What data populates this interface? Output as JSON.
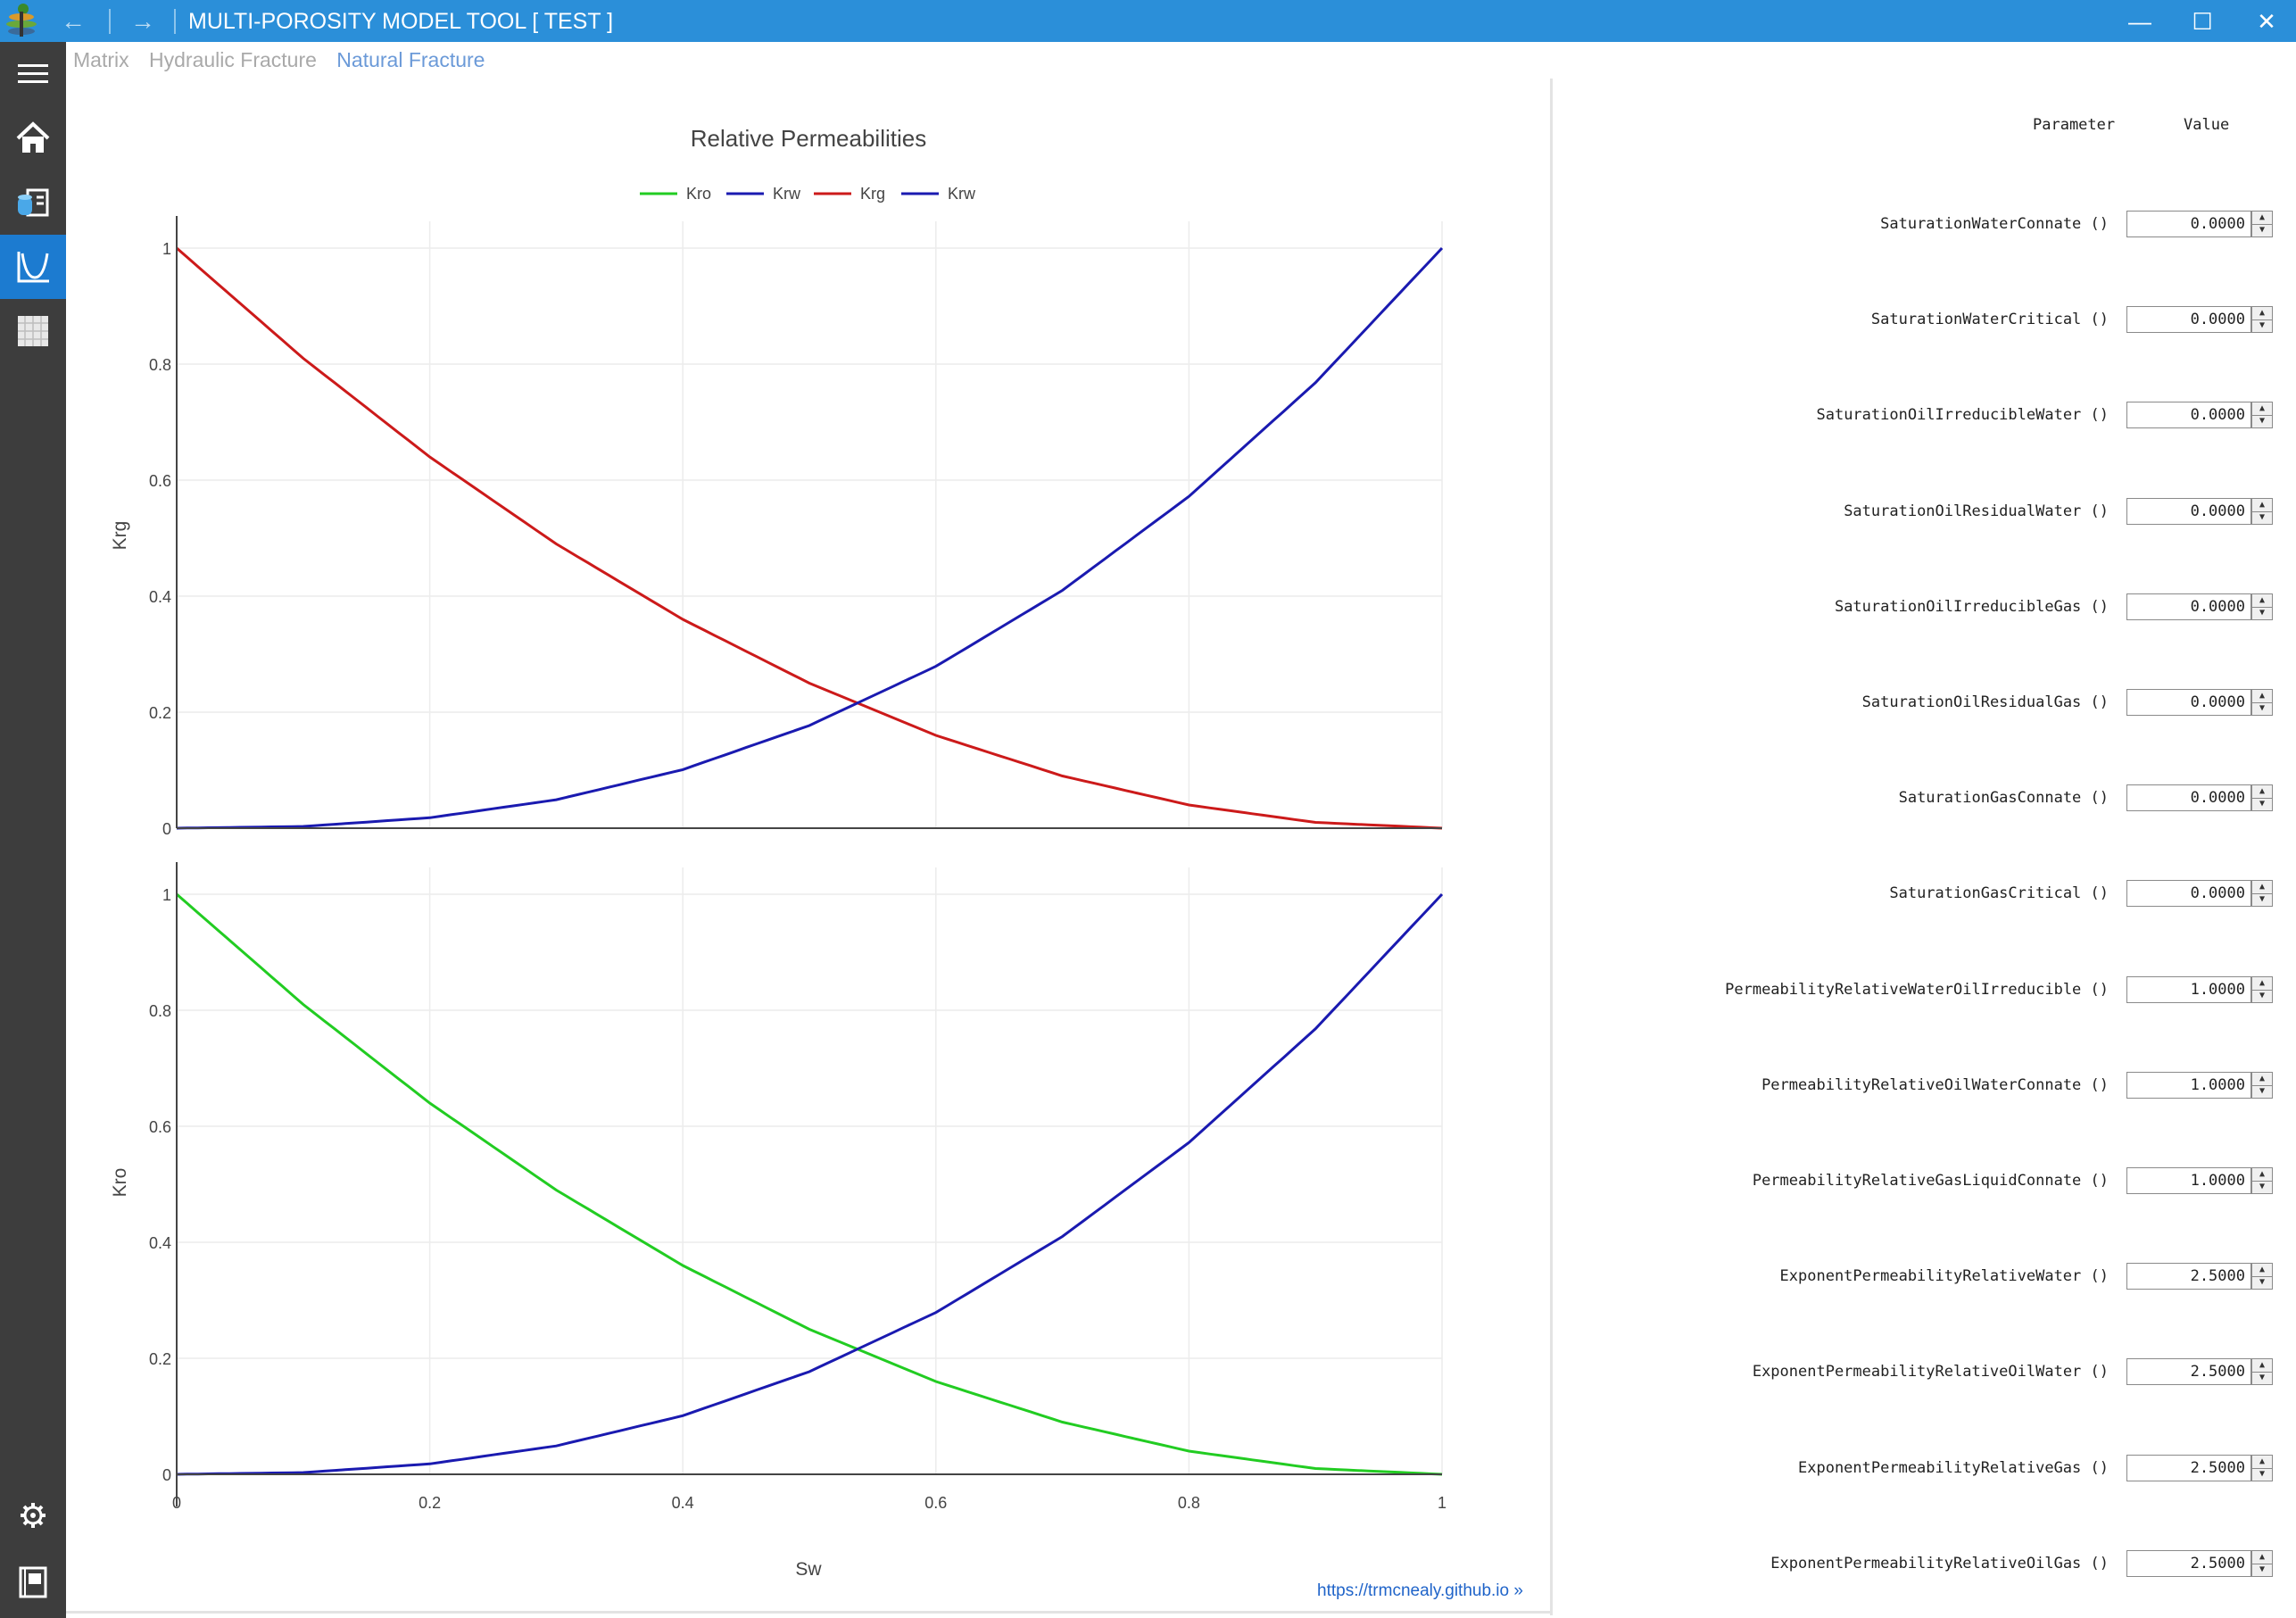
{
  "window": {
    "title": "MULTI-POROSITY MODEL TOOL [ TEST ]",
    "back_glyph": "←",
    "forward_glyph": "→",
    "minimize_glyph": "—",
    "maximize_glyph": "☐",
    "close_glyph": "✕"
  },
  "sidebar": {
    "items": [
      {
        "name": "menu-icon"
      },
      {
        "name": "home-icon"
      },
      {
        "name": "database-icon"
      },
      {
        "name": "chart-curve-icon",
        "active": true
      },
      {
        "name": "grid-icon"
      },
      {
        "name": "gear-icon"
      },
      {
        "name": "notebook-icon"
      }
    ]
  },
  "tabs": [
    {
      "label": "Matrix",
      "active": false
    },
    {
      "label": "Hydraulic Fracture",
      "active": false
    },
    {
      "label": "Natural Fracture",
      "active": true
    }
  ],
  "chart_data": {
    "type": "line",
    "title": "Relative Permeabilities",
    "xlabel": "Sw",
    "xlim": [
      0,
      1
    ],
    "xticks": [
      "0",
      "0.2",
      "0.4",
      "0.6",
      "0.8",
      "1"
    ],
    "legend_position": "top-center",
    "legend": [
      {
        "name": "Kro",
        "color": "#22cc22"
      },
      {
        "name": "Krw",
        "color": "#1a1ab0"
      },
      {
        "name": "Krg",
        "color": "#cc1a1a"
      },
      {
        "name": "Krw",
        "color": "#1a1ab0"
      }
    ],
    "grid": true,
    "subplots": [
      {
        "ylabel": "Krg",
        "ylim": [
          0,
          1
        ],
        "yticks": [
          "0",
          "0.2",
          "0.4",
          "0.6",
          "0.8",
          "1"
        ],
        "series": [
          {
            "name": "Krg",
            "color": "#cc1a1a",
            "x": [
              0,
              0.1,
              0.2,
              0.3,
              0.4,
              0.5,
              0.6,
              0.7,
              0.8,
              0.9,
              1.0
            ],
            "y": [
              1.0,
              0.81,
              0.64,
              0.49,
              0.36,
              0.25,
              0.16,
              0.09,
              0.04,
              0.01,
              0.0
            ]
          },
          {
            "name": "Krw",
            "color": "#1a1ab0",
            "x": [
              0,
              0.1,
              0.2,
              0.3,
              0.4,
              0.5,
              0.6,
              0.7,
              0.8,
              0.9,
              1.0
            ],
            "y": [
              0.0,
              0.003,
              0.018,
              0.049,
              0.101,
              0.177,
              0.279,
              0.41,
              0.572,
              0.768,
              1.0
            ]
          }
        ]
      },
      {
        "ylabel": "Kro",
        "ylim": [
          0,
          1
        ],
        "yticks": [
          "0",
          "0.2",
          "0.4",
          "0.6",
          "0.8",
          "1"
        ],
        "series": [
          {
            "name": "Kro",
            "color": "#22cc22",
            "x": [
              0,
              0.1,
              0.2,
              0.3,
              0.4,
              0.5,
              0.6,
              0.7,
              0.8,
              0.9,
              1.0
            ],
            "y": [
              1.0,
              0.81,
              0.64,
              0.49,
              0.36,
              0.25,
              0.16,
              0.09,
              0.04,
              0.01,
              0.0
            ]
          },
          {
            "name": "Krw",
            "color": "#1a1ab0",
            "x": [
              0,
              0.1,
              0.2,
              0.3,
              0.4,
              0.5,
              0.6,
              0.7,
              0.8,
              0.9,
              1.0
            ],
            "y": [
              0.0,
              0.003,
              0.018,
              0.049,
              0.101,
              0.177,
              0.279,
              0.41,
              0.572,
              0.768,
              1.0
            ]
          }
        ]
      }
    ]
  },
  "credit_link": "https://trmcnealy.github.io »",
  "params": {
    "header_parameter": "Parameter",
    "header_value": "Value",
    "rows": [
      {
        "label": "SaturationWaterConnate ()",
        "value": "0.0000"
      },
      {
        "label": "SaturationWaterCritical ()",
        "value": "0.0000"
      },
      {
        "label": "SaturationOilIrreducibleWater ()",
        "value": "0.0000"
      },
      {
        "label": "SaturationOilResidualWater ()",
        "value": "0.0000"
      },
      {
        "label": "SaturationOilIrreducibleGas ()",
        "value": "0.0000"
      },
      {
        "label": "SaturationOilResidualGas ()",
        "value": "0.0000"
      },
      {
        "label": "SaturationGasConnate ()",
        "value": "0.0000"
      },
      {
        "label": "SaturationGasCritical ()",
        "value": "0.0000"
      },
      {
        "label": "PermeabilityRelativeWaterOilIrreducible ()",
        "value": "1.0000"
      },
      {
        "label": "PermeabilityRelativeOilWaterConnate ()",
        "value": "1.0000"
      },
      {
        "label": "PermeabilityRelativeGasLiquidConnate ()",
        "value": "1.0000"
      },
      {
        "label": "ExponentPermeabilityRelativeWater ()",
        "value": "2.5000"
      },
      {
        "label": "ExponentPermeabilityRelativeOilWater ()",
        "value": "2.5000"
      },
      {
        "label": "ExponentPermeabilityRelativeGas ()",
        "value": "2.5000"
      },
      {
        "label": "ExponentPermeabilityRelativeOilGas ()",
        "value": "2.5000"
      }
    ]
  }
}
